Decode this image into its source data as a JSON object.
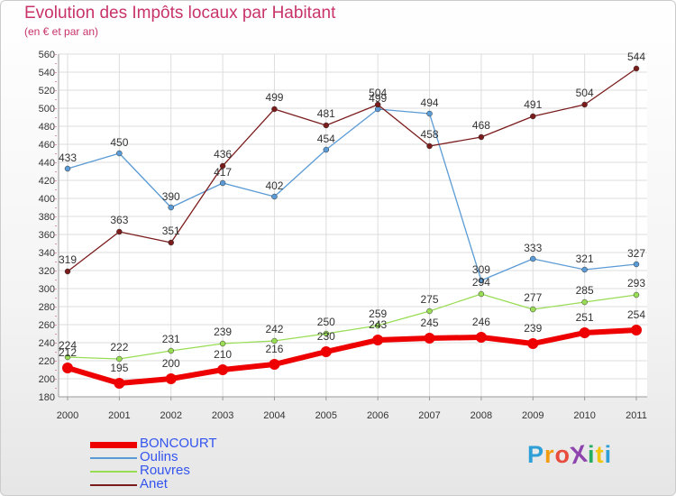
{
  "header": {
    "title": "Evolution des Impôts locaux par Habitant",
    "subtitle": "(en € et par an)"
  },
  "chart_data": {
    "type": "line",
    "title": "Evolution des Impôts locaux par Habitant",
    "subtitle": "(en € et par an)",
    "xlabel": "",
    "ylabel": "",
    "x": [
      "2000",
      "2001",
      "2002",
      "2003",
      "2004",
      "2005",
      "2006",
      "2007",
      "2008",
      "2009",
      "2010",
      "2011"
    ],
    "ylim": [
      180,
      560
    ],
    "yticks": [
      180,
      200,
      220,
      240,
      260,
      280,
      300,
      320,
      340,
      360,
      380,
      400,
      420,
      440,
      460,
      480,
      500,
      520,
      540,
      560
    ],
    "grid": true,
    "legend": "bottom-left",
    "series": [
      {
        "name": "BONCOURT",
        "color": "#ee0000",
        "values": [
          212,
          195,
          200,
          210,
          216,
          230,
          243,
          245,
          246,
          239,
          251,
          254
        ]
      },
      {
        "name": "Oulins",
        "color": "#5b9bd5",
        "values": [
          433,
          450,
          390,
          417,
          402,
          454,
          499,
          494,
          309,
          333,
          321,
          327
        ]
      },
      {
        "name": "Rouvres",
        "color": "#99dd55",
        "values": [
          224,
          222,
          231,
          239,
          242,
          250,
          259,
          275,
          294,
          277,
          285,
          293
        ]
      },
      {
        "name": "Anet",
        "color": "#7b1c1c",
        "values": [
          319,
          363,
          351,
          436,
          499,
          481,
          504,
          458,
          468,
          491,
          504,
          544
        ]
      }
    ]
  },
  "logo": {
    "text": "ProXiti",
    "colors": [
      "#2f9fd8",
      "#f39c12",
      "#e74c3c",
      "#8e44ad",
      "#27ae60",
      "#f1c40f",
      "#2f9fd8"
    ]
  }
}
